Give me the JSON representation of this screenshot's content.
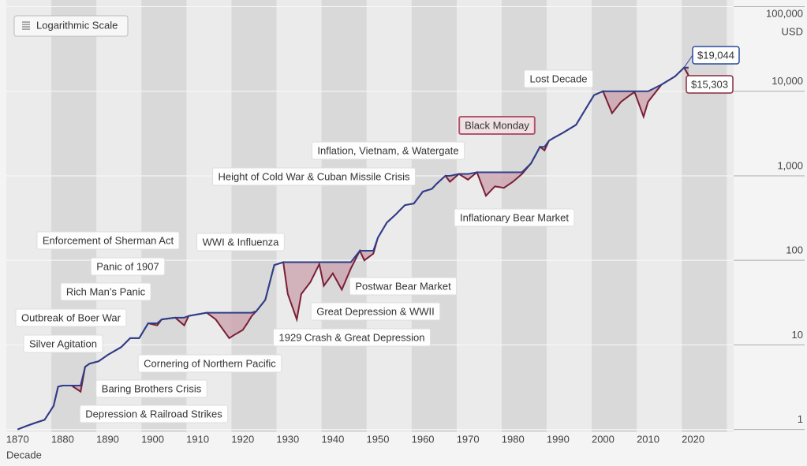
{
  "chart_data": {
    "type": "line",
    "log_scale": true,
    "grid": true,
    "scale_button": "Logarithmic Scale",
    "x_label": "Decade",
    "y_unit": "USD",
    "x": [
      1870,
      1872,
      1874,
      1876,
      1878,
      1879,
      1880,
      1882,
      1884,
      1885,
      1886,
      1888,
      1890,
      1893,
      1895,
      1897,
      1899,
      1901,
      1902,
      1905,
      1907,
      1908,
      1910,
      1912,
      1914,
      1917,
      1918,
      1920,
      1921,
      1922,
      1923,
      1925,
      1927,
      1929,
      1930,
      1932,
      1933,
      1935,
      1937,
      1938,
      1940,
      1942,
      1944,
      1946,
      1947,
      1949,
      1950,
      1952,
      1954,
      1956,
      1958,
      1960,
      1962,
      1963,
      1965,
      1966,
      1968,
      1970,
      1972,
      1974,
      1976,
      1978,
      1980,
      1982,
      1984,
      1986,
      1987,
      1988,
      1989,
      1991,
      1994,
      1996,
      1998,
      2000,
      2002,
      2004,
      2006,
      2007,
      2009,
      2010,
      2013,
      2016,
      2018,
      2019
    ],
    "values": [
      1,
      1.1,
      1.2,
      1.3,
      1.9,
      3.2,
      3.3,
      3.3,
      2.8,
      5.5,
      6,
      6.4,
      7.6,
      9.4,
      12,
      12,
      18,
      17,
      20,
      21,
      17,
      22,
      23,
      24,
      20,
      12,
      13,
      15,
      18,
      22,
      25,
      34,
      88,
      95,
      40,
      20,
      40,
      55,
      90,
      50,
      70,
      45,
      80,
      130,
      100,
      120,
      185,
      280,
      350,
      450,
      470,
      650,
      700,
      800,
      1000,
      850,
      1050,
      900,
      1100,
      580,
      750,
      720,
      850,
      1050,
      1400,
      2200,
      2000,
      2600,
      2800,
      3200,
      4000,
      6000,
      9000,
      10000,
      5500,
      7500,
      9000,
      9800,
      5000,
      7500,
      12000,
      15000,
      19044,
      15303
    ],
    "line_color": "#2c3e8c",
    "drawdown_color": "#7a1f35",
    "xlim": [
      1867.5,
      2029
    ],
    "ylim": [
      0.93,
      120000
    ],
    "xticks": [
      1870,
      1880,
      1890,
      1900,
      1910,
      1920,
      1930,
      1940,
      1950,
      1960,
      1970,
      1980,
      1990,
      2000,
      2010,
      2020
    ],
    "yticks": [
      1,
      10,
      100,
      {
        "value": 1000,
        "label": "1,000"
      },
      {
        "value": 10000,
        "label": "10,000"
      },
      {
        "value": 100000,
        "label": "100,000"
      }
    ],
    "callouts": [
      {
        "x": 2018,
        "value": 19044,
        "label": "$19,044",
        "color": "#2c4a9a"
      },
      {
        "x": 2019,
        "value": 15303,
        "label": "$15,303",
        "color": "#8a2a3f"
      }
    ],
    "annotations": [
      "Lost Decade",
      "Black Monday",
      "Inflation, Vietnam, & Watergate",
      "Height of Cold War & Cuban Missile Crisis",
      "Inflationary Bear Market",
      "Enforcement of Sherman Act",
      "WWI & Influenza",
      "Panic of 1907",
      "Rich Man’s Panic",
      "Postwar Bear Market",
      "Outbreak of Boer War",
      "Great Depression & WWII",
      "Silver Agitation",
      "1929 Crash & Great Depression",
      "Cornering of Northern Pacific",
      "Baring Brothers Crisis",
      "Depression & Railroad Strikes"
    ]
  }
}
